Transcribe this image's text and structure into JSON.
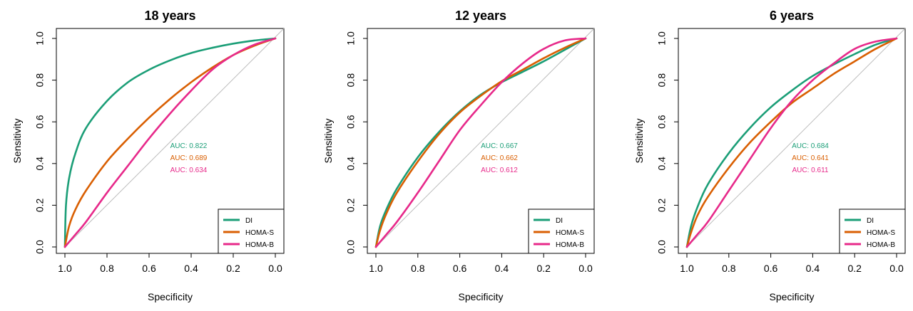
{
  "colors": {
    "DI": "#1b9e77",
    "HOMA-S": "#d95f02",
    "HOMA-B": "#e7298a",
    "diagonal": "#bdbdbd",
    "frame": "#000000"
  },
  "chart_data": [
    {
      "type": "line",
      "title": "18 years",
      "xlabel": "Specificity",
      "ylabel": "Sensitivity",
      "xlim": [
        1.0,
        0.0
      ],
      "ylim": [
        0.0,
        1.0
      ],
      "x_reversed": true,
      "xticks": [
        "1.0",
        "0.8",
        "0.6",
        "0.4",
        "0.2",
        "0.0"
      ],
      "yticks": [
        "0.0",
        "0.2",
        "0.4",
        "0.6",
        "0.8",
        "1.0"
      ],
      "grid": false,
      "legend": "bottom-right",
      "diagonal": true,
      "auc_labels": [
        "AUC: 0.822",
        "AUC: 0.689",
        "AUC: 0.634"
      ],
      "series": [
        {
          "name": "DI",
          "color": "#1b9e77",
          "auc": 0.822,
          "x": [
            1.0,
            0.995,
            0.98,
            0.95,
            0.9,
            0.8,
            0.7,
            0.6,
            0.5,
            0.4,
            0.3,
            0.2,
            0.1,
            0.0
          ],
          "y": [
            0.0,
            0.2,
            0.33,
            0.45,
            0.57,
            0.7,
            0.79,
            0.85,
            0.895,
            0.93,
            0.955,
            0.975,
            0.99,
            1.0
          ]
        },
        {
          "name": "HOMA-S",
          "color": "#d95f02",
          "auc": 0.689,
          "x": [
            1.0,
            0.98,
            0.95,
            0.9,
            0.8,
            0.7,
            0.6,
            0.5,
            0.4,
            0.3,
            0.2,
            0.1,
            0.0
          ],
          "y": [
            0.0,
            0.1,
            0.18,
            0.27,
            0.41,
            0.52,
            0.62,
            0.71,
            0.79,
            0.86,
            0.92,
            0.965,
            1.0
          ]
        },
        {
          "name": "HOMA-B",
          "color": "#e7298a",
          "auc": 0.634,
          "x": [
            1.0,
            0.95,
            0.9,
            0.8,
            0.7,
            0.6,
            0.5,
            0.4,
            0.3,
            0.2,
            0.1,
            0.0
          ],
          "y": [
            0.0,
            0.06,
            0.12,
            0.26,
            0.39,
            0.52,
            0.64,
            0.75,
            0.85,
            0.92,
            0.97,
            1.0
          ]
        }
      ]
    },
    {
      "type": "line",
      "title": "12 years",
      "xlabel": "Specificity",
      "ylabel": "Sensitivity",
      "xlim": [
        1.0,
        0.0
      ],
      "ylim": [
        0.0,
        1.0
      ],
      "x_reversed": true,
      "xticks": [
        "1.0",
        "0.8",
        "0.6",
        "0.4",
        "0.2",
        "0.0"
      ],
      "yticks": [
        "0.0",
        "0.2",
        "0.4",
        "0.6",
        "0.8",
        "1.0"
      ],
      "grid": false,
      "legend": "bottom-right",
      "diagonal": true,
      "auc_labels": [
        "AUC: 0.667",
        "AUC: 0.662",
        "AUC: 0.612"
      ],
      "series": [
        {
          "name": "DI",
          "color": "#1b9e77",
          "auc": 0.667,
          "x": [
            1.0,
            0.98,
            0.95,
            0.9,
            0.8,
            0.7,
            0.6,
            0.5,
            0.4,
            0.3,
            0.2,
            0.1,
            0.0
          ],
          "y": [
            0.0,
            0.1,
            0.18,
            0.28,
            0.43,
            0.55,
            0.65,
            0.73,
            0.79,
            0.84,
            0.89,
            0.945,
            1.0
          ]
        },
        {
          "name": "HOMA-S",
          "color": "#d95f02",
          "auc": 0.662,
          "x": [
            1.0,
            0.98,
            0.95,
            0.9,
            0.8,
            0.7,
            0.6,
            0.5,
            0.4,
            0.3,
            0.2,
            0.1,
            0.0
          ],
          "y": [
            0.0,
            0.08,
            0.16,
            0.26,
            0.41,
            0.54,
            0.645,
            0.725,
            0.795,
            0.85,
            0.905,
            0.955,
            1.0
          ]
        },
        {
          "name": "HOMA-B",
          "color": "#e7298a",
          "auc": 0.612,
          "x": [
            1.0,
            0.95,
            0.9,
            0.8,
            0.7,
            0.6,
            0.5,
            0.4,
            0.3,
            0.2,
            0.1,
            0.0
          ],
          "y": [
            0.0,
            0.06,
            0.12,
            0.26,
            0.41,
            0.56,
            0.68,
            0.79,
            0.88,
            0.95,
            0.99,
            1.0
          ]
        }
      ]
    },
    {
      "type": "line",
      "title": "6 years",
      "xlabel": "Specificity",
      "ylabel": "Sensitivity",
      "xlim": [
        1.0,
        0.0
      ],
      "ylim": [
        0.0,
        1.0
      ],
      "x_reversed": true,
      "xticks": [
        "1.0",
        "0.8",
        "0.6",
        "0.4",
        "0.2",
        "0.0"
      ],
      "yticks": [
        "0.0",
        "0.2",
        "0.4",
        "0.6",
        "0.8",
        "1.0"
      ],
      "grid": false,
      "legend": "bottom-right",
      "diagonal": true,
      "auc_labels": [
        "AUC: 0.684",
        "AUC: 0.641",
        "AUC: 0.611"
      ],
      "series": [
        {
          "name": "DI",
          "color": "#1b9e77",
          "auc": 0.684,
          "x": [
            1.0,
            0.98,
            0.95,
            0.9,
            0.8,
            0.7,
            0.6,
            0.5,
            0.4,
            0.3,
            0.2,
            0.1,
            0.0
          ],
          "y": [
            0.0,
            0.1,
            0.19,
            0.3,
            0.45,
            0.57,
            0.67,
            0.75,
            0.82,
            0.875,
            0.925,
            0.97,
            1.0
          ]
        },
        {
          "name": "HOMA-S",
          "color": "#d95f02",
          "auc": 0.641,
          "x": [
            1.0,
            0.98,
            0.95,
            0.9,
            0.8,
            0.7,
            0.6,
            0.5,
            0.4,
            0.3,
            0.2,
            0.1,
            0.0
          ],
          "y": [
            0.0,
            0.07,
            0.15,
            0.24,
            0.38,
            0.5,
            0.6,
            0.69,
            0.76,
            0.83,
            0.89,
            0.95,
            1.0
          ]
        },
        {
          "name": "HOMA-B",
          "color": "#e7298a",
          "auc": 0.611,
          "x": [
            1.0,
            0.95,
            0.9,
            0.8,
            0.7,
            0.6,
            0.5,
            0.4,
            0.3,
            0.2,
            0.1,
            0.0
          ],
          "y": [
            0.0,
            0.06,
            0.12,
            0.27,
            0.42,
            0.57,
            0.7,
            0.8,
            0.88,
            0.95,
            0.985,
            1.0
          ]
        }
      ]
    }
  ]
}
